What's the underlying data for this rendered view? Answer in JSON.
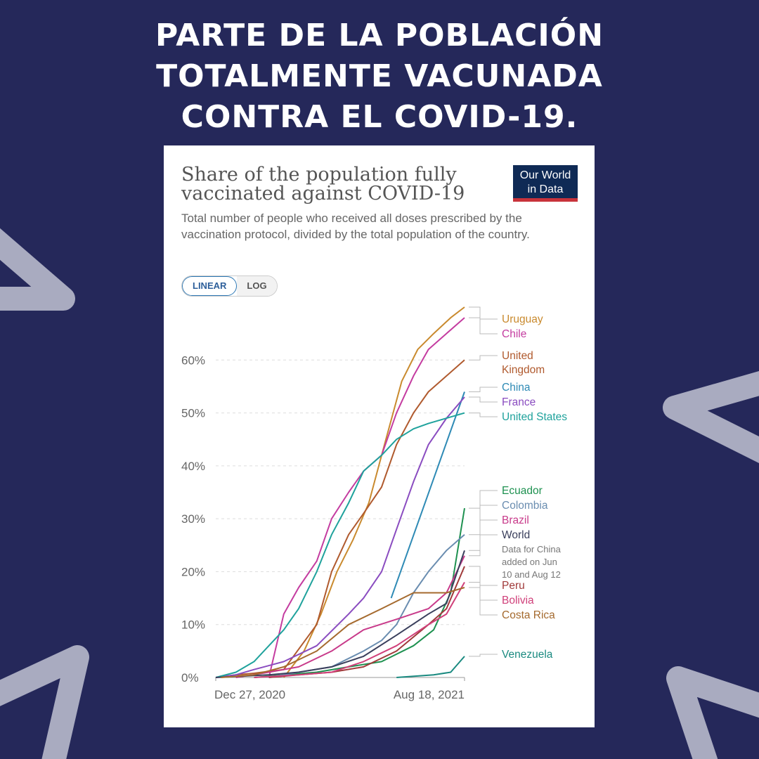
{
  "headline": {
    "line1": "PARTE DE LA POBLACIÓN",
    "line2": "TOTALMENTE VACUNADA",
    "line3": "CONTRA EL COVID-19."
  },
  "card": {
    "title_line1": "Share of the population fully",
    "title_line2": "vaccinated against COVID-19",
    "subtitle": "Total number of people who received all doses prescribed by the vaccination protocol, divided by the total population of the country.",
    "logo_line1": "Our World",
    "logo_line2": "in Data",
    "toggle": {
      "linear": "LINEAR",
      "log": "LOG",
      "selected": "LINEAR"
    }
  },
  "colors": {
    "background": "#25285a",
    "card": "#ffffff",
    "logo_bg": "#0f2a55",
    "logo_accent": "#c8333b",
    "deco_arrow": "#a9abc0"
  },
  "chart_data": {
    "type": "line",
    "title": "Share of the population fully vaccinated against COVID-19",
    "xlabel": "",
    "ylabel": "",
    "x_ticks": [
      "Dec 27, 2020",
      "Aug 18, 2021"
    ],
    "y_ticks": [
      "0%",
      "10%",
      "20%",
      "30%",
      "40%",
      "50%",
      "60%"
    ],
    "ylim": [
      0,
      70
    ],
    "grid": true,
    "legend": "right-inline",
    "note": "Data for China added on Jun 10 and Aug 12",
    "series": [
      {
        "name": "Uruguay",
        "color": "#c98a2e",
        "x": [
          "2021-03-01",
          "2021-03-20",
          "2021-04-05",
          "2021-04-20",
          "2021-05-05",
          "2021-05-20",
          "2021-06-05",
          "2021-06-20",
          "2021-07-05",
          "2021-07-20",
          "2021-08-05",
          "2021-08-18"
        ],
        "y": [
          0,
          5,
          12,
          20,
          26,
          33,
          45,
          56,
          62,
          65,
          68,
          70
        ]
      },
      {
        "name": "Chile",
        "color": "#c43ca0",
        "x": [
          "2021-02-15",
          "2021-03-01",
          "2021-03-15",
          "2021-04-01",
          "2021-04-15",
          "2021-05-01",
          "2021-05-15",
          "2021-06-01",
          "2021-06-15",
          "2021-07-01",
          "2021-07-15",
          "2021-08-01",
          "2021-08-18"
        ],
        "y": [
          0,
          12,
          17,
          22,
          30,
          35,
          39,
          42,
          50,
          57,
          62,
          65,
          68
        ]
      },
      {
        "name": "United Kingdom",
        "color": "#b05a2e",
        "x": [
          "2020-12-27",
          "2021-01-15",
          "2021-02-01",
          "2021-03-01",
          "2021-04-01",
          "2021-04-15",
          "2021-05-01",
          "2021-05-15",
          "2021-06-01",
          "2021-06-15",
          "2021-07-01",
          "2021-07-15",
          "2021-08-01",
          "2021-08-18"
        ],
        "y": [
          0,
          0.5,
          0.8,
          1.5,
          10,
          20,
          27,
          31,
          36,
          44,
          50,
          54,
          57,
          60
        ]
      },
      {
        "name": "China",
        "color": "#2e8ab5",
        "x": [
          "2021-06-10",
          "2021-08-18"
        ],
        "y": [
          15,
          54
        ]
      },
      {
        "name": "France",
        "color": "#8a4cc0",
        "x": [
          "2020-12-27",
          "2021-01-15",
          "2021-02-01",
          "2021-03-01",
          "2021-04-01",
          "2021-05-01",
          "2021-05-15",
          "2021-06-01",
          "2021-06-15",
          "2021-07-01",
          "2021-07-15",
          "2021-08-01",
          "2021-08-18"
        ],
        "y": [
          0,
          0.5,
          1.5,
          3,
          6,
          12,
          15,
          20,
          28,
          37,
          44,
          49,
          53
        ]
      },
      {
        "name": "United States",
        "color": "#1fa29c",
        "x": [
          "2020-12-27",
          "2021-01-15",
          "2021-02-01",
          "2021-02-15",
          "2021-03-01",
          "2021-03-15",
          "2021-04-01",
          "2021-04-15",
          "2021-05-01",
          "2021-05-15",
          "2021-06-01",
          "2021-06-15",
          "2021-07-01",
          "2021-07-15",
          "2021-08-01",
          "2021-08-18"
        ],
        "y": [
          0,
          1,
          3,
          6,
          9,
          13,
          20,
          27,
          33,
          39,
          42,
          45,
          47,
          48,
          49,
          50
        ]
      },
      {
        "name": "Ecuador",
        "color": "#1e9150",
        "x": [
          "2021-02-01",
          "2021-04-01",
          "2021-05-01",
          "2021-06-01",
          "2021-07-01",
          "2021-07-20",
          "2021-08-05",
          "2021-08-18"
        ],
        "y": [
          0,
          1,
          2,
          3,
          6,
          9,
          16,
          32
        ]
      },
      {
        "name": "Colombia",
        "color": "#6a8db0",
        "x": [
          "2021-02-15",
          "2021-03-15",
          "2021-04-15",
          "2021-05-15",
          "2021-06-01",
          "2021-06-15",
          "2021-07-01",
          "2021-07-15",
          "2021-08-01",
          "2021-08-18"
        ],
        "y": [
          0,
          1,
          2,
          5,
          7,
          10,
          16,
          20,
          24,
          27
        ]
      },
      {
        "name": "Brazil",
        "color": "#c83a8a",
        "x": [
          "2021-01-15",
          "2021-02-15",
          "2021-03-15",
          "2021-04-15",
          "2021-05-15",
          "2021-06-15",
          "2021-07-15",
          "2021-08-01",
          "2021-08-18"
        ],
        "y": [
          0,
          1,
          2,
          5,
          9,
          11,
          13,
          16,
          23
        ]
      },
      {
        "name": "World",
        "color": "#3a3f5c",
        "x": [
          "2020-12-27",
          "2021-01-15",
          "2021-02-15",
          "2021-03-15",
          "2021-04-15",
          "2021-05-15",
          "2021-06-15",
          "2021-07-15",
          "2021-08-01",
          "2021-08-18"
        ],
        "y": [
          0,
          0.2,
          0.5,
          1,
          2,
          4,
          8,
          12,
          14,
          24
        ]
      },
      {
        "name": "Peru",
        "color": "#a03a3a",
        "x": [
          "2021-02-15",
          "2021-03-15",
          "2021-04-15",
          "2021-05-15",
          "2021-06-15",
          "2021-07-15",
          "2021-08-01",
          "2021-08-18"
        ],
        "y": [
          0,
          0.5,
          1,
          2,
          5,
          10,
          13,
          21
        ]
      },
      {
        "name": "Bolivia",
        "color": "#d0407a",
        "x": [
          "2021-02-01",
          "2021-03-15",
          "2021-04-15",
          "2021-05-15",
          "2021-06-15",
          "2021-07-15",
          "2021-08-01",
          "2021-08-18"
        ],
        "y": [
          0,
          0.5,
          1,
          3,
          6,
          10,
          12,
          18
        ]
      },
      {
        "name": "Costa Rica",
        "color": "#a56a2e",
        "x": [
          "2021-01-01",
          "2021-02-01",
          "2021-03-01",
          "2021-04-01",
          "2021-05-01",
          "2021-06-01",
          "2021-07-01",
          "2021-08-01",
          "2021-08-18"
        ],
        "y": [
          0,
          0.5,
          2,
          5,
          10,
          13,
          16,
          16,
          17
        ]
      },
      {
        "name": "Venezuela",
        "color": "#1a8a80",
        "x": [
          "2021-06-15",
          "2021-07-20",
          "2021-08-05",
          "2021-08-18"
        ],
        "y": [
          0,
          0.5,
          1,
          4
        ]
      }
    ]
  }
}
